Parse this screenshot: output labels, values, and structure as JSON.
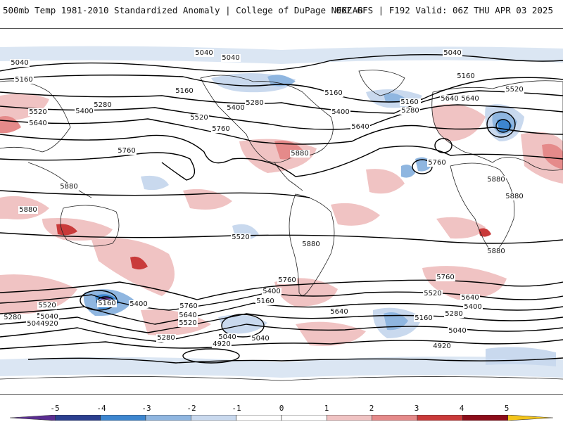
{
  "header": {
    "title": "500mb Temp 1981-2010 Standardized Anomaly | College of DuPage NEXLAB",
    "run_info": "06Z GFS | F192 Valid: 06Z THU APR 03 2025"
  },
  "colorbar": {
    "ticks": [
      "-5",
      "-4",
      "-3",
      "-2",
      "-1",
      "0",
      "1",
      "2",
      "3",
      "4",
      "5"
    ],
    "colors": [
      "#5a2d91",
      "#2b3f8f",
      "#3d86cf",
      "#8fb6e0",
      "#c9d9ee",
      "#ffffff",
      "#ffffff",
      "#f0c3c3",
      "#e58a8a",
      "#c93a3a",
      "#8c0d1a",
      "#f4c51b"
    ]
  },
  "contour_labels": [
    "5040",
    "5040",
    "5040",
    "5040",
    "5160",
    "5160",
    "5160",
    "5160",
    "5280",
    "5280",
    "5520",
    "5400",
    "5400",
    "5640",
    "5520",
    "5640",
    "5760",
    "5760",
    "5880",
    "5880",
    "5880",
    "5520",
    "5640",
    "5400",
    "5040",
    "5280",
    "5160",
    "5520",
    "5640",
    "5760",
    "5880",
    "5880",
    "5880",
    "5880",
    "5760",
    "5760",
    "5520",
    "5280",
    "5040",
    "4920",
    "5160",
    "5400",
    "5760",
    "5640",
    "5520",
    "5280",
    "5040",
    "4920",
    "5400",
    "5160",
    "5640",
    "5040",
    "5040",
    "5520",
    "5640",
    "5400",
    "5280",
    "5160",
    "5040",
    "4920",
    "5640"
  ]
}
